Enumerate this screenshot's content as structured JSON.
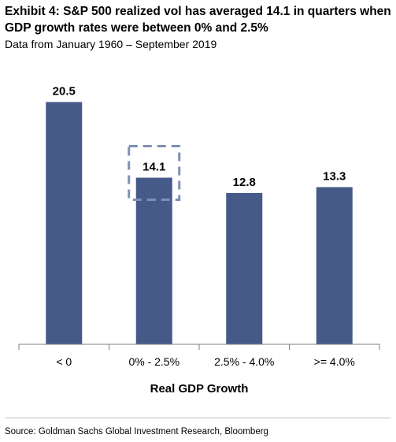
{
  "title": "Exhibit 4: S&P 500 realized vol has averaged 14.1 in quarters when GDP growth rates were between 0% and 2.5%",
  "subtitle": "Data from January 1960 – September 2019",
  "source": "Source: Goldman Sachs Global Investment Research, Bloomberg",
  "colors": {
    "bar": "#465a8a",
    "highlight_box": "#7f8fb5",
    "axis": "#7f7f7f"
  },
  "chart_data": {
    "type": "bar",
    "categories": [
      "< 0",
      "0% - 2.5%",
      "2.5% - 4.0%",
      ">= 4.0%"
    ],
    "values": [
      20.5,
      14.1,
      12.8,
      13.3
    ],
    "data_labels": [
      "20.5",
      "14.1",
      "12.8",
      "13.3"
    ],
    "xlabel": "Real GDP Growth",
    "ylabel": "",
    "ylim": [
      0,
      22
    ],
    "grid": false,
    "highlighted_category": "0% - 2.5%"
  }
}
